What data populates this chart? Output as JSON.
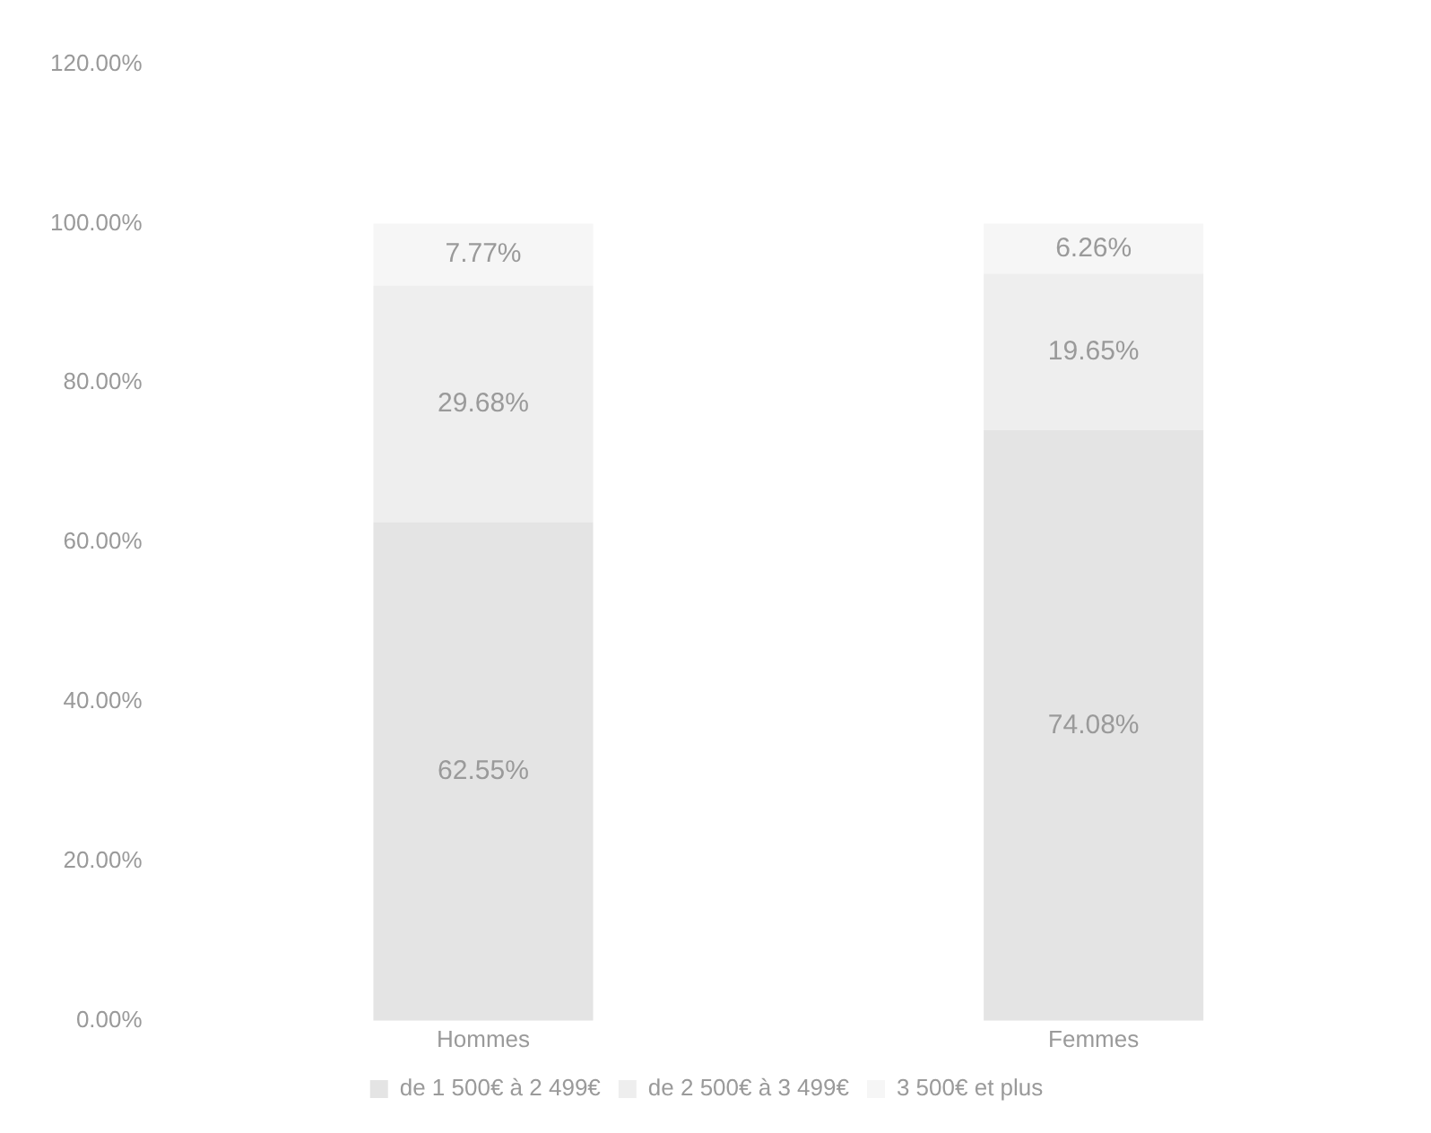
{
  "chart_data": {
    "type": "bar",
    "stacked": true,
    "categories": [
      "Hommes",
      "Femmes"
    ],
    "series": [
      {
        "name": "de 1 500€ à 2 499€",
        "color": "#e4e4e4",
        "values": [
          62.55,
          74.08
        ]
      },
      {
        "name": "de 2 500€ à 3 499€",
        "color": "#eeeeee",
        "values": [
          29.68,
          19.65
        ]
      },
      {
        "name": "3 500€ et plus",
        "color": "#f6f6f6",
        "values": [
          7.77,
          6.26
        ]
      }
    ],
    "value_labels": [
      [
        "62.55%",
        "74.08%"
      ],
      [
        "29.68%",
        "19.65%"
      ],
      [
        "7.77%",
        "6.26%"
      ]
    ],
    "ylim": [
      0,
      120
    ],
    "yticks": [
      {
        "value": 0,
        "label": "0.00%"
      },
      {
        "value": 20,
        "label": "20.00%"
      },
      {
        "value": 40,
        "label": "40.00%"
      },
      {
        "value": 60,
        "label": "60.00%"
      },
      {
        "value": 80,
        "label": "80.00%"
      },
      {
        "value": 100,
        "label": "100.00%"
      },
      {
        "value": 120,
        "label": "120.00%"
      }
    ],
    "grid": false,
    "legend": "bottom"
  }
}
